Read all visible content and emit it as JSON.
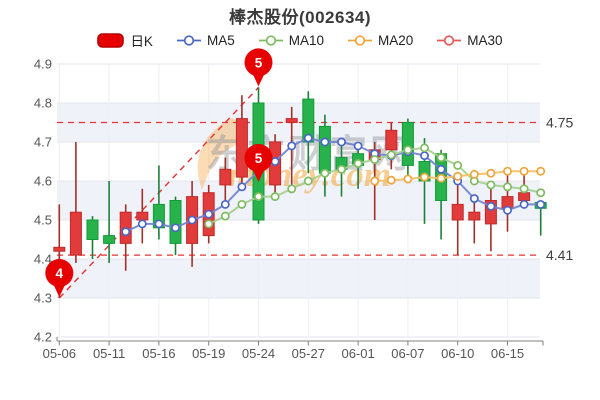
{
  "header": {
    "title": "棒杰股份(002634)"
  },
  "legend": [
    {
      "id": "daily-k",
      "label": "日K",
      "marker": "rect",
      "color": "#e60000",
      "border": "#b50000"
    },
    {
      "id": "ma5",
      "label": "MA5",
      "marker": "ring",
      "color": "#4a66c4"
    },
    {
      "id": "ma10",
      "label": "MA10",
      "marker": "ring",
      "color": "#7fbb60"
    },
    {
      "id": "ma20",
      "label": "MA20",
      "marker": "ring",
      "color": "#eda53c"
    },
    {
      "id": "ma30",
      "label": "MA30",
      "marker": "ring",
      "color": "#e25a5a"
    }
  ],
  "chart_data": {
    "type": "candlestick",
    "title": "棒杰股份(002634)",
    "y_axis": {
      "min": 4.2,
      "max": 4.9,
      "tick_labels": [
        "4.9",
        "4.8",
        "4.7",
        "4.6",
        "4.5",
        "4.4",
        "4.3",
        "4.2"
      ]
    },
    "x_axis_labels": [
      "05-06",
      "05-11",
      "05-16",
      "05-19",
      "05-24",
      "05-27",
      "06-01",
      "06-07",
      "06-10",
      "06-15"
    ],
    "x_label_every_n_candles": 3,
    "candles": [
      {
        "date": "05-06",
        "open": 4.42,
        "high": 4.54,
        "low": 4.3,
        "close": 4.43
      },
      {
        "date": "05-09",
        "open": 4.41,
        "high": 4.7,
        "low": 4.39,
        "close": 4.52
      },
      {
        "date": "05-10",
        "open": 4.5,
        "high": 4.51,
        "low": 4.4,
        "close": 4.45
      },
      {
        "date": "05-11",
        "open": 4.46,
        "high": 4.6,
        "low": 4.39,
        "close": 4.44
      },
      {
        "date": "05-12",
        "open": 4.44,
        "high": 4.54,
        "low": 4.37,
        "close": 4.52
      },
      {
        "date": "05-13",
        "open": 4.5,
        "high": 4.58,
        "low": 4.44,
        "close": 4.52
      },
      {
        "date": "05-16",
        "open": 4.54,
        "high": 4.64,
        "low": 4.45,
        "close": 4.48
      },
      {
        "date": "05-17",
        "open": 4.55,
        "high": 4.56,
        "low": 4.41,
        "close": 4.44
      },
      {
        "date": "05-18",
        "open": 4.44,
        "high": 4.6,
        "low": 4.38,
        "close": 4.56
      },
      {
        "date": "05-19",
        "open": 4.46,
        "high": 4.59,
        "low": 4.44,
        "close": 4.57
      },
      {
        "date": "05-20",
        "open": 4.59,
        "high": 4.66,
        "low": 4.54,
        "close": 4.63
      },
      {
        "date": "05-23",
        "open": 4.61,
        "high": 4.82,
        "low": 4.58,
        "close": 4.76
      },
      {
        "date": "05-24",
        "open": 4.8,
        "high": 4.84,
        "low": 4.49,
        "close": 4.5
      },
      {
        "date": "05-25",
        "open": 4.59,
        "high": 4.72,
        "low": 4.56,
        "close": 4.7
      },
      {
        "date": "05-26",
        "open": 4.75,
        "high": 4.79,
        "low": 4.58,
        "close": 4.76
      },
      {
        "date": "05-27",
        "open": 4.81,
        "high": 4.83,
        "low": 4.62,
        "close": 4.7
      },
      {
        "date": "05-30",
        "open": 4.74,
        "high": 4.77,
        "low": 4.56,
        "close": 4.62
      },
      {
        "date": "05-31",
        "open": 4.66,
        "high": 4.69,
        "low": 4.56,
        "close": 4.63
      },
      {
        "date": "06-01",
        "open": 4.67,
        "high": 4.7,
        "low": 4.58,
        "close": 4.64
      },
      {
        "date": "06-02",
        "open": 4.655,
        "high": 4.7,
        "low": 4.5,
        "close": 4.68
      },
      {
        "date": "06-06",
        "open": 4.68,
        "high": 4.75,
        "low": 4.63,
        "close": 4.73
      },
      {
        "date": "06-07",
        "open": 4.75,
        "high": 4.76,
        "low": 4.6,
        "close": 4.64
      },
      {
        "date": "06-08",
        "open": 4.65,
        "high": 4.71,
        "low": 4.49,
        "close": 4.6
      },
      {
        "date": "06-09",
        "open": 4.67,
        "high": 4.68,
        "low": 4.45,
        "close": 4.55
      },
      {
        "date": "06-10",
        "open": 4.5,
        "high": 4.61,
        "low": 4.41,
        "close": 4.54
      },
      {
        "date": "06-13",
        "open": 4.5,
        "high": 4.56,
        "low": 4.44,
        "close": 4.52
      },
      {
        "date": "06-14",
        "open": 4.49,
        "high": 4.58,
        "low": 4.42,
        "close": 4.55
      },
      {
        "date": "06-15",
        "open": 4.53,
        "high": 4.63,
        "low": 4.47,
        "close": 4.56
      },
      {
        "date": "06-16",
        "open": 4.55,
        "high": 4.62,
        "low": 4.53,
        "close": 4.57
      },
      {
        "date": "06-17",
        "open": 4.545,
        "high": 4.55,
        "low": 4.46,
        "close": 4.53
      }
    ],
    "series": [
      {
        "name": "MA5",
        "line_color": "#7387cf",
        "dot_color": "#4a66c4",
        "values": [
          null,
          null,
          null,
          null,
          4.47,
          4.49,
          4.49,
          4.48,
          4.5,
          4.515,
          4.54,
          4.585,
          4.625,
          4.65,
          4.69,
          4.71,
          4.7,
          4.7,
          4.69,
          4.67,
          4.665,
          4.675,
          4.665,
          4.63,
          4.6,
          4.555,
          4.535,
          4.525,
          4.54,
          4.54
        ]
      },
      {
        "name": "MA10",
        "line_color": "#a6d092",
        "dot_color": "#7fbb60",
        "values": [
          null,
          null,
          null,
          null,
          null,
          null,
          null,
          null,
          null,
          4.49,
          4.51,
          4.54,
          4.56,
          4.56,
          4.58,
          4.6,
          4.62,
          4.63,
          4.645,
          4.655,
          4.667,
          4.68,
          4.685,
          4.66,
          4.64,
          4.6,
          4.59,
          4.585,
          4.58,
          4.57
        ]
      },
      {
        "name": "MA20",
        "line_color": "#f4c169",
        "dot_color": "#eda53c",
        "values": [
          null,
          null,
          null,
          null,
          null,
          null,
          null,
          null,
          null,
          null,
          null,
          null,
          null,
          null,
          null,
          null,
          null,
          null,
          null,
          4.6,
          4.602,
          4.605,
          4.61,
          4.607,
          4.612,
          4.617,
          4.62,
          4.625,
          4.625,
          4.625
        ]
      },
      {
        "name": "MA30",
        "line_color": "#e25a5a",
        "dot_color": "#e25a5a",
        "values": [
          null,
          null,
          null,
          null,
          null,
          null,
          null,
          null,
          null,
          null,
          null,
          null,
          null,
          null,
          null,
          null,
          null,
          null,
          null,
          null,
          null,
          null,
          null,
          null,
          null,
          null,
          null,
          null,
          null,
          null
        ]
      }
    ],
    "reference_lines": [
      {
        "value": 4.75,
        "label": "4.75"
      },
      {
        "value": 4.41,
        "label": "4.41"
      }
    ],
    "trend_line": {
      "from": {
        "index": 0,
        "value": 4.3
      },
      "to": {
        "index": 12,
        "value": 4.84
      }
    },
    "markers": [
      {
        "label": "4",
        "index": 0,
        "value": 4.3
      },
      {
        "label": "5",
        "index": 12,
        "value": 4.84
      },
      {
        "label": "5",
        "index": 12,
        "value": 4.595
      }
    ],
    "watermark": {
      "text_cn": "东方财富网",
      "text_en": "money.com"
    },
    "colors": {
      "up_body": "#e23b3b",
      "up_border": "#c02a2a",
      "up_wick": "#a03028",
      "down_body": "#27b24b",
      "down_border": "#119a39",
      "down_wick": "#1d7f39",
      "reference": "#e83131",
      "marker_balloon": "#e60000",
      "stripe": "#f0f2f9",
      "gridline": "#e3e6ef",
      "axis": "#808080",
      "label": "#555555"
    }
  }
}
